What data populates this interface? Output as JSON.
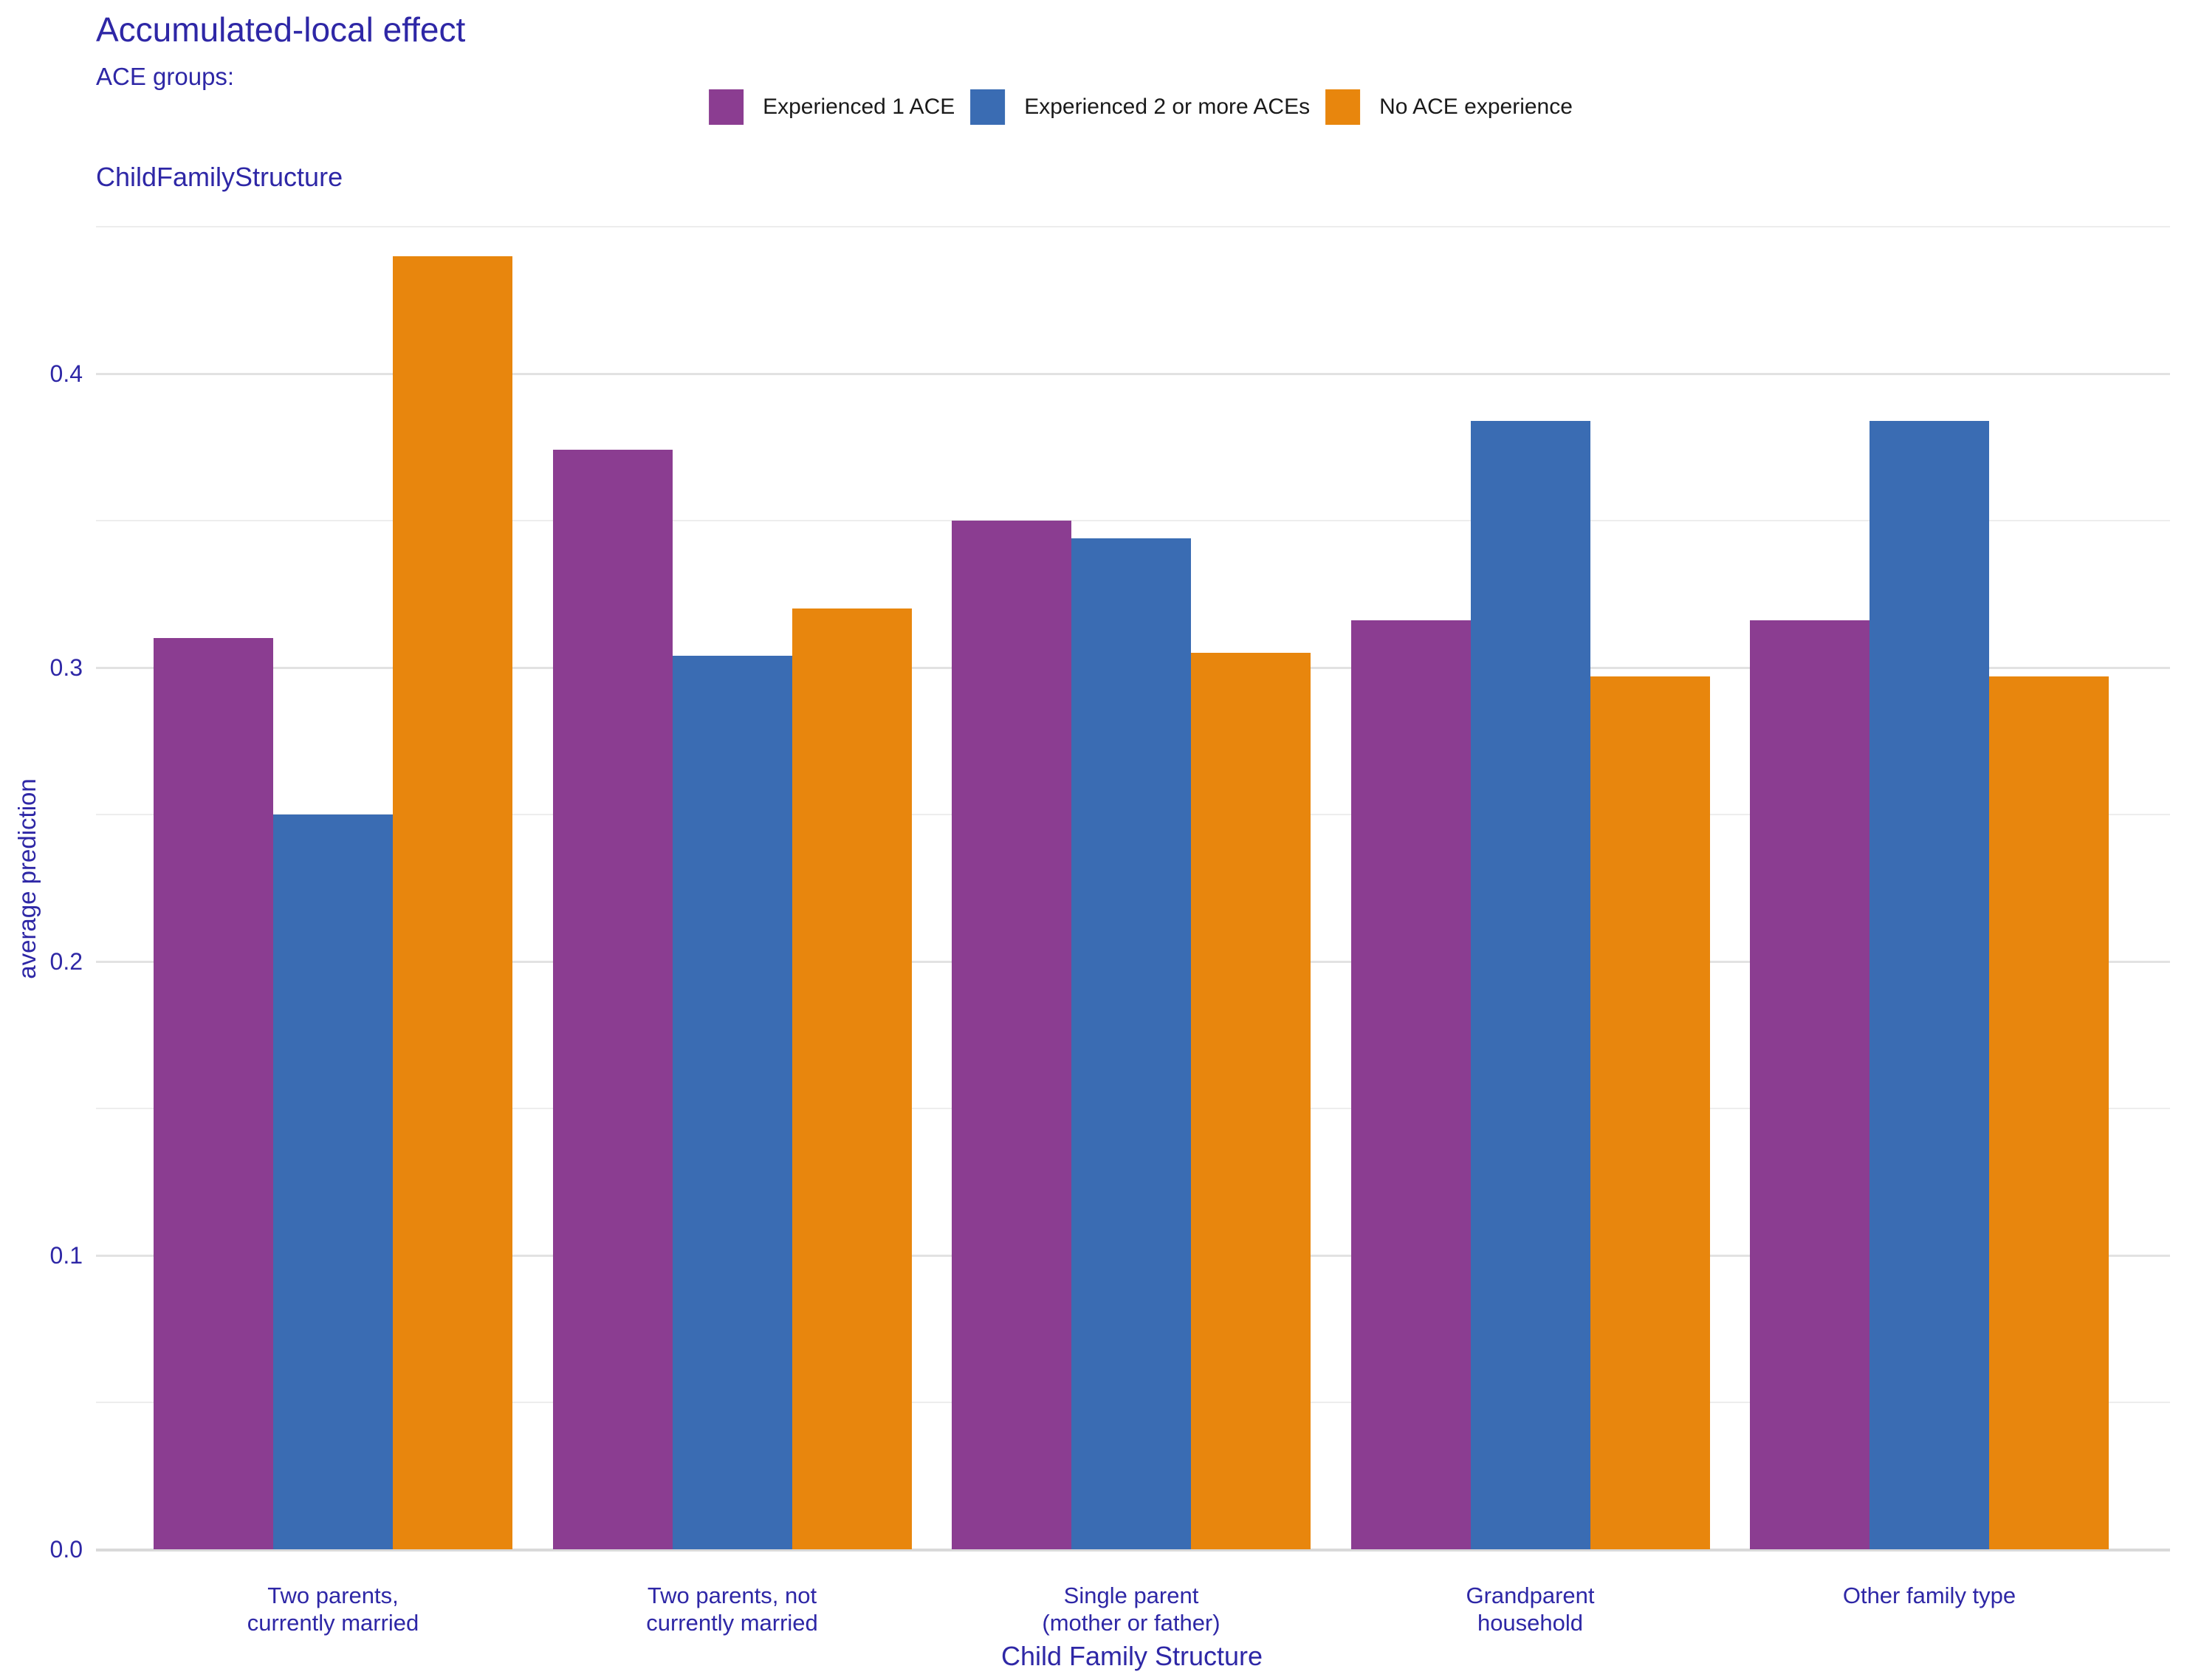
{
  "title": "Accumulated-local effect",
  "panel_subtitle": "ChildFamilyStructure",
  "legend": {
    "heading": "ACE groups:",
    "items": [
      {
        "label": "Experienced 1 ACE",
        "color": "#8B3D91"
      },
      {
        "label": "Experienced 2 or more ACEs",
        "color": "#3A6CB3"
      },
      {
        "label": "No ACE experience",
        "color": "#E8860D"
      }
    ]
  },
  "chart_data": {
    "type": "bar",
    "title": "Accumulated-local effect",
    "panel_label": "ChildFamilyStructure",
    "legend_title": "ACE groups:",
    "legend_position": "top",
    "grid": true,
    "categories": [
      "Two parents, currently married",
      "Two parents, not currently married",
      "Single parent (mother or father)",
      "Grandparent household",
      "Other family type"
    ],
    "category_label_lines": [
      [
        "Two parents,",
        "currently married"
      ],
      [
        "Two parents, not",
        "currently married"
      ],
      [
        "Single parent",
        "(mother or father)"
      ],
      [
        "Grandparent",
        "household"
      ],
      [
        "Other family type"
      ]
    ],
    "series": [
      {
        "name": "Experienced 1 ACE",
        "color": "#8B3D91",
        "values": [
          0.31,
          0.374,
          0.35,
          0.316,
          0.316
        ]
      },
      {
        "name": "Experienced 2 or more ACEs",
        "color": "#3A6CB3",
        "values": [
          0.25,
          0.304,
          0.344,
          0.384,
          0.384
        ]
      },
      {
        "name": "No ACE experience",
        "color": "#E8860D",
        "values": [
          0.44,
          0.32,
          0.305,
          0.297,
          0.297
        ]
      }
    ],
    "xlabel": "Child Family Structure",
    "ylabel": "average prediction",
    "ylim": [
      0,
      0.4525
    ],
    "yticks": [
      0.0,
      0.1,
      0.2,
      0.3,
      0.4
    ],
    "ytick_labels": [
      "0.0",
      "0.1",
      "0.2",
      "0.3",
      "0.4"
    ],
    "minor_gridlines": [
      0.05,
      0.15,
      0.25,
      0.35,
      0.45
    ]
  },
  "colors": {
    "text": "#2E27A6",
    "legend_text": "#1A1A1A",
    "grid_major": "#E2E2E2",
    "grid_minor": "#EDEDED",
    "baseline": "#D9D9D9",
    "background": "#FFFFFF"
  }
}
